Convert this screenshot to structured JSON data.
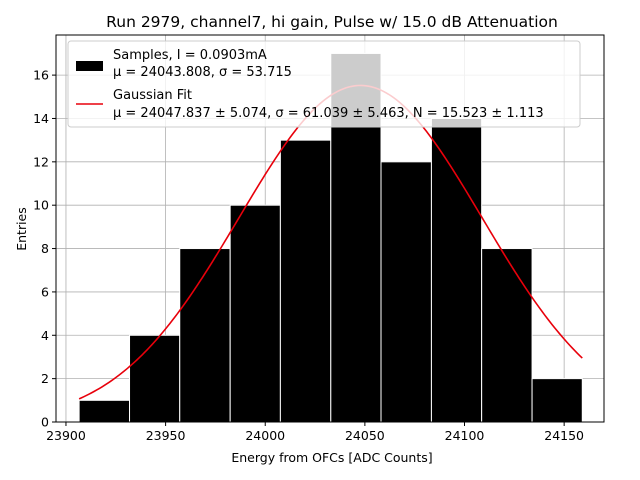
{
  "chart_data": {
    "type": "bar",
    "title": "Run 2979, channel7, hi gain, Pulse w/ 15.0 dB Attenuation",
    "xlabel": "Energy from OFCs [ADC Counts]",
    "ylabel": "Entries",
    "xlim": [
      23895,
      24170
    ],
    "ylim": [
      0,
      17.85
    ],
    "grid": true,
    "legend_position": "top-left",
    "xticks": [
      23900,
      23950,
      24000,
      24050,
      24100,
      24150
    ],
    "yticks": [
      0,
      2,
      4,
      6,
      8,
      10,
      12,
      14,
      16
    ],
    "bin_edges": [
      23906.6,
      23931.9,
      23957.1,
      23982.4,
      24007.6,
      24032.9,
      24058.1,
      24083.4,
      24108.6,
      24133.9,
      24159.1
    ],
    "values": [
      1,
      4,
      8,
      10,
      13,
      17,
      12,
      14,
      8,
      2
    ],
    "series": [
      {
        "name": "Samples, I = 0.0903mA",
        "name_line2": "μ = 24043.808, σ = 53.715",
        "kind": "histogram",
        "color": "#000000"
      },
      {
        "name": "Gaussian Fit",
        "name_line2": "μ = 24047.837 ± 5.074, σ = 61.039 ± 5.463, N = 15.523 ± 1.113",
        "kind": "line",
        "color": "#e8000b",
        "mu": 24047.837,
        "sigma": 61.039,
        "amplitude": 15.523,
        "x_range": [
          23906.6,
          24159.1
        ]
      }
    ]
  }
}
